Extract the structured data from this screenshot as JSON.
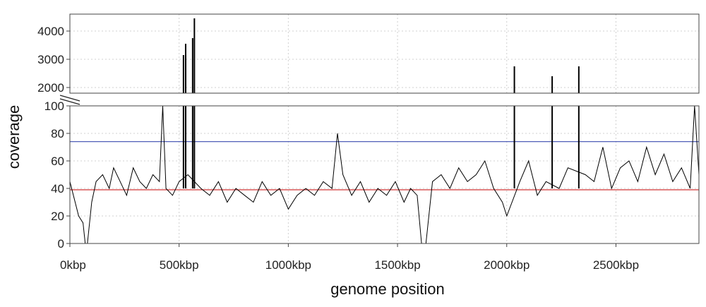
{
  "chart_data": {
    "type": "line",
    "title": "",
    "xlabel": "genome position",
    "ylabel": "coverage",
    "x_unit": "kbp",
    "xlim": [
      0,
      2880
    ],
    "x_ticks": [
      0,
      500,
      1000,
      1500,
      2000,
      2500
    ],
    "x_tick_labels": [
      "0kbp",
      "500kbp",
      "1000kbp",
      "1500kbp",
      "2000kbp",
      "2500kbp"
    ],
    "y_axis_break": true,
    "lower_panel": {
      "ylim": [
        0,
        100
      ],
      "y_ticks": [
        0,
        20,
        40,
        60,
        80,
        100
      ],
      "y_tick_labels": [
        "0",
        "20",
        "40",
        "60",
        "80",
        "100"
      ]
    },
    "upper_panel": {
      "ylim": [
        1800,
        4600
      ],
      "y_ticks": [
        2000,
        3000,
        4000
      ],
      "y_tick_labels": [
        "2000",
        "3000",
        "4000"
      ]
    },
    "grid": true,
    "reference_lines": [
      {
        "value": 74,
        "color": "#3b4bb0"
      },
      {
        "value": 39,
        "color": "#cc2222"
      }
    ],
    "line_color": "#000000",
    "peaks": [
      {
        "x": 520,
        "y": 3150
      },
      {
        "x": 530,
        "y": 3550
      },
      {
        "x": 562,
        "y": 3750
      },
      {
        "x": 570,
        "y": 4450
      },
      {
        "x": 2035,
        "y": 2750
      },
      {
        "x": 2208,
        "y": 2400
      },
      {
        "x": 2330,
        "y": 2750
      }
    ],
    "series": [
      {
        "x": [
          0,
          40,
          60,
          70,
          80,
          100,
          120,
          150,
          180,
          200,
          230,
          260,
          290,
          320,
          350,
          380,
          410,
          425,
          440,
          470,
          500,
          540,
          600,
          640,
          680,
          720,
          760,
          800,
          840,
          880,
          920,
          960,
          1000,
          1040,
          1080,
          1120,
          1160,
          1200,
          1225,
          1250,
          1290,
          1330,
          1370,
          1410,
          1450,
          1490,
          1530,
          1560,
          1590,
          1610,
          1630,
          1660,
          1700,
          1740,
          1780,
          1820,
          1860,
          1900,
          1940,
          1980,
          2000,
          2060,
          2100,
          2140,
          2180,
          2240,
          2280,
          2360,
          2400,
          2440,
          2480,
          2520,
          2560,
          2600,
          2640,
          2680,
          2720,
          2760,
          2800,
          2840,
          2860,
          2880
        ],
        "values": [
          45,
          20,
          15,
          0,
          0,
          30,
          45,
          50,
          40,
          55,
          45,
          35,
          55,
          45,
          40,
          50,
          45,
          100,
          40,
          35,
          45,
          50,
          40,
          35,
          45,
          30,
          40,
          35,
          30,
          45,
          35,
          40,
          25,
          35,
          40,
          35,
          45,
          40,
          80,
          50,
          35,
          45,
          30,
          40,
          35,
          45,
          30,
          40,
          35,
          0,
          0,
          45,
          50,
          40,
          55,
          45,
          50,
          60,
          40,
          30,
          20,
          45,
          60,
          35,
          45,
          40,
          55,
          50,
          45,
          70,
          40,
          55,
          60,
          45,
          70,
          50,
          65,
          45,
          55,
          40,
          100,
          50
        ]
      }
    ]
  }
}
